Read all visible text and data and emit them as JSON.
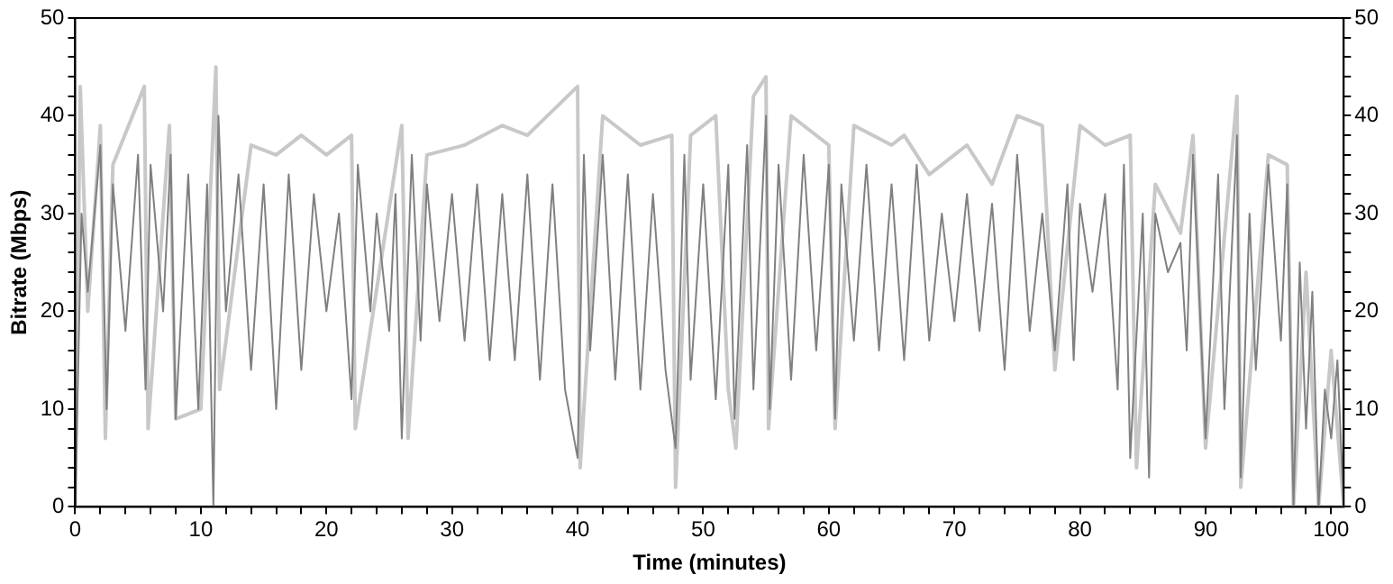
{
  "chart_data": {
    "type": "line",
    "xlabel": "Time (minutes)",
    "ylabel": "Bitrate (Mbps)",
    "marker": "none",
    "line_style": "solid",
    "legend": false,
    "xlim": [
      0,
      101
    ],
    "ylim": [
      0,
      50
    ],
    "y2lim": [
      0,
      50
    ],
    "xticks": [
      0,
      {
        "value": 2,
        "label": null
      },
      {
        "value": 4,
        "label": null
      },
      {
        "value": 6,
        "label": null
      },
      {
        "value": 8,
        "label": null
      },
      10,
      {
        "value": 12,
        "label": null
      },
      {
        "value": 14,
        "label": null
      },
      {
        "value": 16,
        "label": null
      },
      {
        "value": 18,
        "label": null
      },
      20,
      {
        "value": 22,
        "label": null
      },
      {
        "value": 24,
        "label": null
      },
      {
        "value": 26,
        "label": null
      },
      {
        "value": 28,
        "label": null
      },
      30,
      {
        "value": 32,
        "label": null
      },
      {
        "value": 34,
        "label": null
      },
      {
        "value": 36,
        "label": null
      },
      {
        "value": 38,
        "label": null
      },
      40,
      {
        "value": 42,
        "label": null
      },
      {
        "value": 44,
        "label": null
      },
      {
        "value": 46,
        "label": null
      },
      {
        "value": 48,
        "label": null
      },
      50,
      {
        "value": 52,
        "label": null
      },
      {
        "value": 54,
        "label": null
      },
      {
        "value": 56,
        "label": null
      },
      {
        "value": 58,
        "label": null
      },
      60,
      {
        "value": 62,
        "label": null
      },
      {
        "value": 64,
        "label": null
      },
      {
        "value": 66,
        "label": null
      },
      {
        "value": 68,
        "label": null
      },
      70,
      {
        "value": 72,
        "label": null
      },
      {
        "value": 74,
        "label": null
      },
      {
        "value": 76,
        "label": null
      },
      {
        "value": 78,
        "label": null
      },
      80,
      {
        "value": 82,
        "label": null
      },
      {
        "value": 84,
        "label": null
      },
      {
        "value": 86,
        "label": null
      },
      {
        "value": 88,
        "label": null
      },
      90,
      {
        "value": 92,
        "label": null
      },
      {
        "value": 94,
        "label": null
      },
      {
        "value": 96,
        "label": null
      },
      {
        "value": 98,
        "label": null
      },
      100
    ],
    "yticks": [
      0,
      {
        "value": 2,
        "label": null
      },
      {
        "value": 4,
        "label": null
      },
      {
        "value": 6,
        "label": null
      },
      {
        "value": 8,
        "label": null
      },
      10,
      {
        "value": 12,
        "label": null
      },
      {
        "value": 14,
        "label": null
      },
      {
        "value": 16,
        "label": null
      },
      {
        "value": 18,
        "label": null
      },
      20,
      {
        "value": 22,
        "label": null
      },
      {
        "value": 24,
        "label": null
      },
      {
        "value": 26,
        "label": null
      },
      {
        "value": 28,
        "label": null
      },
      30,
      {
        "value": 32,
        "label": null
      },
      {
        "value": 34,
        "label": null
      },
      {
        "value": 36,
        "label": null
      },
      {
        "value": 38,
        "label": null
      },
      40,
      {
        "value": 42,
        "label": null
      },
      {
        "value": 44,
        "label": null
      },
      {
        "value": 46,
        "label": null
      },
      {
        "value": 48,
        "label": null
      },
      50
    ],
    "y2ticks": [
      0,
      {
        "value": 2,
        "label": null
      },
      {
        "value": 4,
        "label": null
      },
      {
        "value": 6,
        "label": null
      },
      {
        "value": 8,
        "label": null
      },
      10,
      {
        "value": 12,
        "label": null
      },
      {
        "value": 14,
        "label": null
      },
      {
        "value": 16,
        "label": null
      },
      {
        "value": 18,
        "label": null
      },
      20,
      {
        "value": 22,
        "label": null
      },
      {
        "value": 24,
        "label": null
      },
      {
        "value": 26,
        "label": null
      },
      {
        "value": 28,
        "label": null
      },
      30,
      {
        "value": 32,
        "label": null
      },
      {
        "value": 34,
        "label": null
      },
      {
        "value": 36,
        "label": null
      },
      {
        "value": 38,
        "label": null
      },
      40,
      {
        "value": 42,
        "label": null
      },
      {
        "value": 44,
        "label": null
      },
      {
        "value": 46,
        "label": null
      },
      {
        "value": 48,
        "label": null
      },
      50
    ],
    "series": [
      {
        "color": "#c8c8c8",
        "x": [
          0,
          0.4,
          1,
          2,
          2.4,
          3,
          5.5,
          5.8,
          7.5,
          8,
          10,
          11.2,
          11.5,
          14,
          16,
          18,
          20,
          22,
          22.3,
          26,
          26.5,
          28,
          31,
          34,
          36,
          40,
          40.2,
          42,
          45,
          47.5,
          47.8,
          49,
          51,
          52,
          52.6,
          54,
          55,
          55.2,
          57,
          60,
          60.5,
          62,
          65,
          66,
          68,
          70,
          71,
          73,
          75,
          77,
          78,
          80,
          82,
          84,
          84.5,
          86,
          88,
          89,
          90,
          92.5,
          92.8,
          95,
          96.5,
          97,
          98,
          99,
          100,
          101
        ],
        "values": [
          0,
          43,
          20,
          39,
          7,
          35,
          43,
          8,
          39,
          9,
          10,
          45,
          12,
          37,
          36,
          38,
          36,
          38,
          8,
          39,
          7,
          36,
          37,
          39,
          38,
          43,
          4,
          40,
          37,
          38,
          2,
          38,
          40,
          12,
          6,
          42,
          44,
          8,
          40,
          37,
          8,
          39,
          37,
          38,
          34,
          36,
          37,
          33,
          40,
          39,
          14,
          39,
          37,
          38,
          4,
          33,
          28,
          38,
          6,
          42,
          2,
          36,
          35,
          0,
          24,
          0,
          16,
          0
        ]
      },
      {
        "color": "#808080",
        "x": [
          0,
          0.5,
          1,
          2,
          2.5,
          3,
          4,
          5,
          5.6,
          6,
          7,
          7.6,
          8,
          9,
          9.8,
          10.5,
          11,
          11.4,
          12,
          13,
          14,
          15,
          16,
          17,
          18,
          19,
          20,
          21,
          22,
          22.5,
          23.5,
          24,
          25,
          25.5,
          26,
          26.8,
          27.5,
          28,
          29,
          30,
          31,
          32,
          33,
          34,
          35,
          36,
          37,
          38,
          39,
          40,
          40.5,
          41,
          42,
          43,
          44,
          45,
          46,
          47,
          47.8,
          48.5,
          49,
          50,
          51,
          52,
          52.5,
          53.5,
          54,
          55,
          55.3,
          56,
          57,
          58,
          59,
          60,
          60.5,
          61,
          62,
          63,
          64,
          65,
          66,
          67,
          68,
          69,
          70,
          71,
          72,
          73,
          74,
          75,
          76,
          77,
          78,
          79,
          79.5,
          80,
          81,
          82,
          83,
          83.5,
          84,
          85,
          85.5,
          86,
          87,
          88,
          88.5,
          89,
          90,
          91,
          91.5,
          92.5,
          92.8,
          93.5,
          94,
          95,
          96,
          96.5,
          97,
          97.5,
          98,
          98.5,
          99,
          99.5,
          100,
          100.5,
          101
        ],
        "values": [
          0,
          30,
          22,
          37,
          10,
          33,
          18,
          36,
          12,
          35,
          20,
          36,
          9,
          34,
          10,
          33,
          0,
          40,
          20,
          34,
          14,
          33,
          10,
          34,
          14,
          32,
          20,
          30,
          11,
          35,
          20,
          30,
          18,
          32,
          7,
          36,
          17,
          33,
          19,
          32,
          17,
          33,
          15,
          32,
          15,
          34,
          13,
          33,
          12,
          5,
          36,
          16,
          36,
          13,
          34,
          12,
          32,
          14,
          6,
          36,
          13,
          33,
          11,
          35,
          9,
          37,
          12,
          40,
          10,
          35,
          13,
          36,
          16,
          35,
          9,
          33,
          17,
          35,
          16,
          33,
          15,
          35,
          17,
          30,
          19,
          32,
          18,
          31,
          14,
          36,
          18,
          30,
          16,
          33,
          15,
          31,
          22,
          32,
          12,
          35,
          5,
          30,
          3,
          30,
          24,
          27,
          16,
          36,
          7,
          34,
          10,
          38,
          3,
          30,
          14,
          35,
          17,
          33,
          0,
          25,
          8,
          22,
          0,
          12,
          7,
          15,
          0
        ]
      }
    ]
  }
}
